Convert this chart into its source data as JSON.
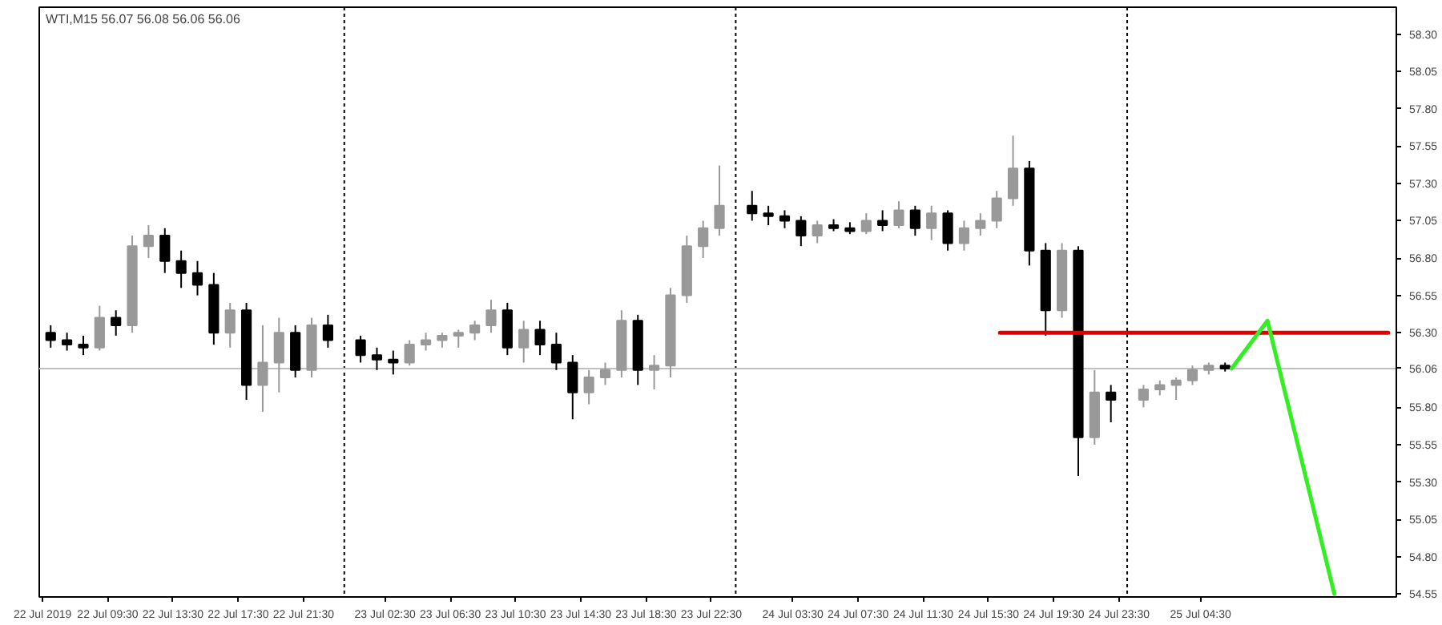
{
  "chart_data": {
    "type": "candlestick",
    "title": "WTI,M15  56.07 56.08 56.06 56.06",
    "x": [
      "2019-07-22T06:00",
      "2019-07-22T07:00",
      "2019-07-22T08:00",
      "2019-07-22T09:00",
      "2019-07-22T10:00",
      "2019-07-22T11:00",
      "2019-07-22T12:00",
      "2019-07-22T13:00",
      "2019-07-22T14:00",
      "2019-07-22T15:00",
      "2019-07-22T16:00",
      "2019-07-22T17:00",
      "2019-07-22T18:00",
      "2019-07-22T19:00",
      "2019-07-22T20:00",
      "2019-07-22T21:00",
      "2019-07-22T22:00",
      "2019-07-22T23:00",
      "2019-07-23T01:00",
      "2019-07-23T02:00",
      "2019-07-23T03:00",
      "2019-07-23T04:00",
      "2019-07-23T05:00",
      "2019-07-23T06:00",
      "2019-07-23T07:00",
      "2019-07-23T08:00",
      "2019-07-23T09:00",
      "2019-07-23T10:00",
      "2019-07-23T11:00",
      "2019-07-23T12:00",
      "2019-07-23T13:00",
      "2019-07-23T14:00",
      "2019-07-23T15:00",
      "2019-07-23T16:00",
      "2019-07-23T17:00",
      "2019-07-23T18:00",
      "2019-07-23T19:00",
      "2019-07-23T20:00",
      "2019-07-23T21:00",
      "2019-07-23T22:00",
      "2019-07-23T23:00",
      "2019-07-24T01:00",
      "2019-07-24T02:00",
      "2019-07-24T03:00",
      "2019-07-24T04:00",
      "2019-07-24T05:00",
      "2019-07-24T06:00",
      "2019-07-24T07:00",
      "2019-07-24T08:00",
      "2019-07-24T09:00",
      "2019-07-24T10:00",
      "2019-07-24T11:00",
      "2019-07-24T12:00",
      "2019-07-24T13:00",
      "2019-07-24T14:00",
      "2019-07-24T15:00",
      "2019-07-24T16:00",
      "2019-07-24T17:00",
      "2019-07-24T18:00",
      "2019-07-24T19:00",
      "2019-07-24T20:00",
      "2019-07-24T21:00",
      "2019-07-24T22:00",
      "2019-07-24T23:00",
      "2019-07-25T01:00",
      "2019-07-25T02:00",
      "2019-07-25T03:00",
      "2019-07-25T04:00",
      "2019-07-25T05:00",
      "2019-07-25T06:00"
    ],
    "ohlc": [
      [
        56.3,
        56.35,
        56.2,
        56.25
      ],
      [
        56.25,
        56.3,
        56.18,
        56.22
      ],
      [
        56.22,
        56.28,
        56.15,
        56.2
      ],
      [
        56.2,
        56.48,
        56.18,
        56.4
      ],
      [
        56.4,
        56.45,
        56.28,
        56.35
      ],
      [
        56.35,
        56.95,
        56.3,
        56.88
      ],
      [
        56.88,
        57.02,
        56.8,
        56.95
      ],
      [
        56.95,
        57.0,
        56.7,
        56.78
      ],
      [
        56.78,
        56.85,
        56.6,
        56.7
      ],
      [
        56.7,
        56.78,
        56.55,
        56.62
      ],
      [
        56.62,
        56.7,
        56.22,
        56.3
      ],
      [
        56.3,
        56.5,
        56.2,
        56.45
      ],
      [
        56.45,
        56.5,
        55.85,
        55.95
      ],
      [
        55.95,
        56.35,
        55.77,
        56.1
      ],
      [
        56.1,
        56.4,
        55.9,
        56.3
      ],
      [
        56.3,
        56.35,
        56.0,
        56.05
      ],
      [
        56.05,
        56.4,
        56.0,
        56.35
      ],
      [
        56.35,
        56.42,
        56.2,
        56.25
      ],
      [
        56.25,
        56.28,
        56.1,
        56.15
      ],
      [
        56.15,
        56.2,
        56.05,
        56.12
      ],
      [
        56.12,
        56.18,
        56.02,
        56.1
      ],
      [
        56.1,
        56.25,
        56.08,
        56.22
      ],
      [
        56.22,
        56.3,
        56.18,
        56.25
      ],
      [
        56.25,
        56.3,
        56.2,
        56.28
      ],
      [
        56.28,
        56.32,
        56.2,
        56.3
      ],
      [
        56.3,
        56.38,
        56.25,
        56.35
      ],
      [
        56.35,
        56.52,
        56.3,
        56.45
      ],
      [
        56.45,
        56.5,
        56.15,
        56.2
      ],
      [
        56.2,
        56.38,
        56.1,
        56.32
      ],
      [
        56.32,
        56.38,
        56.15,
        56.22
      ],
      [
        56.22,
        56.3,
        56.05,
        56.1
      ],
      [
        56.1,
        56.15,
        55.72,
        55.9
      ],
      [
        55.9,
        56.05,
        55.82,
        56.0
      ],
      [
        56.0,
        56.1,
        55.95,
        56.05
      ],
      [
        56.05,
        56.45,
        56.0,
        56.38
      ],
      [
        56.38,
        56.42,
        55.95,
        56.05
      ],
      [
        56.05,
        56.15,
        55.92,
        56.08
      ],
      [
        56.08,
        56.6,
        56.0,
        56.55
      ],
      [
        56.55,
        56.95,
        56.5,
        56.88
      ],
      [
        56.88,
        57.05,
        56.8,
        57.0
      ],
      [
        57.0,
        57.42,
        56.95,
        57.15
      ],
      [
        57.15,
        57.25,
        57.05,
        57.1
      ],
      [
        57.1,
        57.15,
        57.02,
        57.08
      ],
      [
        57.08,
        57.12,
        57.0,
        57.05
      ],
      [
        57.05,
        57.08,
        56.88,
        56.95
      ],
      [
        56.95,
        57.05,
        56.9,
        57.02
      ],
      [
        57.02,
        57.06,
        56.98,
        57.0
      ],
      [
        57.0,
        57.04,
        56.96,
        56.98
      ],
      [
        56.98,
        57.1,
        56.96,
        57.05
      ],
      [
        57.05,
        57.12,
        56.98,
        57.02
      ],
      [
        57.02,
        57.18,
        57.0,
        57.12
      ],
      [
        57.12,
        57.15,
        56.95,
        57.0
      ],
      [
        57.0,
        57.15,
        56.92,
        57.1
      ],
      [
        57.1,
        57.12,
        56.85,
        56.9
      ],
      [
        56.9,
        57.05,
        56.85,
        57.0
      ],
      [
        57.0,
        57.1,
        56.95,
        57.05
      ],
      [
        57.05,
        57.25,
        57.0,
        57.2
      ],
      [
        57.2,
        57.62,
        57.15,
        57.4
      ],
      [
        57.4,
        57.45,
        56.75,
        56.85
      ],
      [
        56.85,
        56.9,
        56.28,
        56.45
      ],
      [
        56.45,
        56.9,
        56.4,
        56.85
      ],
      [
        56.85,
        56.88,
        55.34,
        55.6
      ],
      [
        55.6,
        56.05,
        55.55,
        55.9
      ],
      [
        55.9,
        55.95,
        55.7,
        55.85
      ],
      [
        55.85,
        55.95,
        55.8,
        55.92
      ],
      [
        55.92,
        55.98,
        55.88,
        55.95
      ],
      [
        55.95,
        56.0,
        55.85,
        55.98
      ],
      [
        55.98,
        56.08,
        55.95,
        56.05
      ],
      [
        56.05,
        56.1,
        56.02,
        56.08
      ],
      [
        56.08,
        56.1,
        56.04,
        56.06
      ]
    ],
    "colors": [
      "#000000",
      "#000000",
      "#000000",
      "#999999",
      "#000000",
      "#999999",
      "#999999",
      "#000000",
      "#000000",
      "#000000",
      "#000000",
      "#999999",
      "#000000",
      "#999999",
      "#999999",
      "#000000",
      "#999999",
      "#000000",
      "#000000",
      "#000000",
      "#000000",
      "#999999",
      "#999999",
      "#999999",
      "#999999",
      "#999999",
      "#999999",
      "#000000",
      "#999999",
      "#000000",
      "#000000",
      "#000000",
      "#999999",
      "#999999",
      "#999999",
      "#000000",
      "#999999",
      "#999999",
      "#999999",
      "#999999",
      "#999999",
      "#000000",
      "#000000",
      "#000000",
      "#000000",
      "#999999",
      "#000000",
      "#000000",
      "#999999",
      "#000000",
      "#999999",
      "#000000",
      "#999999",
      "#000000",
      "#999999",
      "#999999",
      "#999999",
      "#999999",
      "#000000",
      "#000000",
      "#999999",
      "#000000",
      "#999999",
      "#000000",
      "#999999",
      "#999999",
      "#999999",
      "#999999",
      "#999999",
      "#000000"
    ],
    "series": [
      {
        "type": "line",
        "color": "#e00000",
        "x": [
          "2019-07-24T16:12",
          "2019-07-25T16:00"
        ],
        "values": [
          56.3,
          56.3
        ]
      },
      {
        "type": "line",
        "color": "#33ee22",
        "x": [
          "2019-07-25T06:24",
          "2019-07-25T08:36",
          "2019-07-25T12:42"
        ],
        "values": [
          56.06,
          56.38,
          54.55
        ]
      }
    ],
    "ref_lines": [
      {
        "axis": "x",
        "value": "2019-07-23T00:00",
        "color": "#000000",
        "line_style": "dotted"
      },
      {
        "axis": "x",
        "value": "2019-07-24T00:00",
        "color": "#000000",
        "line_style": "dotted"
      },
      {
        "axis": "x",
        "value": "2019-07-25T00:00",
        "color": "#000000",
        "line_style": "dotted"
      },
      {
        "axis": "y",
        "value": 56.06,
        "label": "56.06",
        "color": "#c0c0c0",
        "line_style": "solid"
      }
    ],
    "xlim": [
      "2019-07-22T05:18",
      "2019-07-25T16:30"
    ],
    "xticks": [
      {
        "value": "2019-07-22T05:30",
        "label": "22 Jul 2019"
      },
      {
        "value": "2019-07-22T09:30",
        "label": "22 Jul 09:30"
      },
      {
        "value": "2019-07-22T13:30",
        "label": "22 Jul 13:30"
      },
      {
        "value": "2019-07-22T17:30",
        "label": "22 Jul 17:30"
      },
      {
        "value": "2019-07-22T21:30",
        "label": "22 Jul 21:30"
      },
      {
        "value": "2019-07-23T02:30",
        "label": "23 Jul 02:30"
      },
      {
        "value": "2019-07-23T06:30",
        "label": "23 Jul 06:30"
      },
      {
        "value": "2019-07-23T10:30",
        "label": "23 Jul 10:30"
      },
      {
        "value": "2019-07-23T14:30",
        "label": "23 Jul 14:30"
      },
      {
        "value": "2019-07-23T18:30",
        "label": "23 Jul 18:30"
      },
      {
        "value": "2019-07-23T22:30",
        "label": "23 Jul 22:30"
      },
      {
        "value": "2019-07-24T03:30",
        "label": "24 Jul 03:30"
      },
      {
        "value": "2019-07-24T07:30",
        "label": "24 Jul 07:30"
      },
      {
        "value": "2019-07-24T11:30",
        "label": "24 Jul 11:30"
      },
      {
        "value": "2019-07-24T15:30",
        "label": "24 Jul 15:30"
      },
      {
        "value": "2019-07-24T19:30",
        "label": "24 Jul 19:30"
      },
      {
        "value": "2019-07-24T23:30",
        "label": "24 Jul 23:30"
      },
      {
        "value": "2019-07-25T04:30",
        "label": "25 Jul 04:30"
      }
    ],
    "ylim": [
      54.53,
      58.48
    ],
    "yticks": [
      {
        "value": 54.55,
        "label": "54.55"
      },
      {
        "value": 54.8,
        "label": "54.80"
      },
      {
        "value": 55.05,
        "label": "55.05"
      },
      {
        "value": 55.3,
        "label": "55.30"
      },
      {
        "value": 55.55,
        "label": "55.55"
      },
      {
        "value": 55.8,
        "label": "55.80"
      },
      {
        "value": 56.3,
        "label": "56.30"
      },
      {
        "value": 56.55,
        "label": "56.55"
      },
      {
        "value": 56.8,
        "label": "56.80"
      },
      {
        "value": 57.05,
        "label": "57.05"
      },
      {
        "value": 57.3,
        "label": "57.30"
      },
      {
        "value": 57.55,
        "label": "57.55"
      },
      {
        "value": 57.8,
        "label": "57.80"
      },
      {
        "value": 58.05,
        "label": "58.05"
      },
      {
        "value": 58.3,
        "label": "58.30"
      }
    ]
  }
}
